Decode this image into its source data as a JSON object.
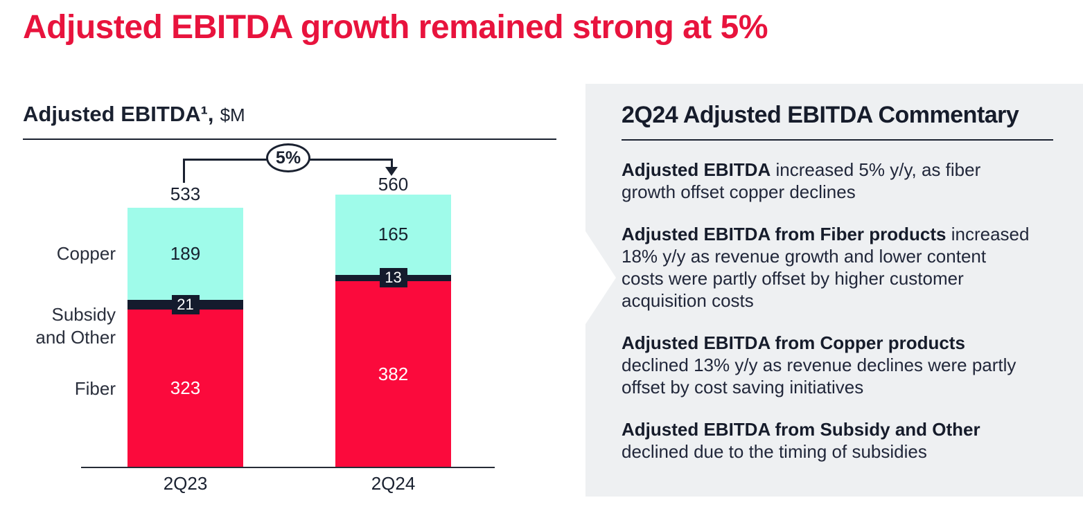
{
  "title": "Adjusted EBITDA growth remained strong at 5%",
  "chart": {
    "header_title": "Adjusted EBITDA¹,",
    "header_unit": "$M"
  },
  "chart_data": {
    "type": "bar",
    "stacked": true,
    "title": "Adjusted EBITDA¹, $M",
    "categories": [
      "2Q23",
      "2Q24"
    ],
    "series": [
      {
        "name": "Fiber",
        "values": [
          323,
          382
        ],
        "color": "#fb0a3c",
        "label_color": "#ffffff",
        "label_style": "inside"
      },
      {
        "name": "Subsidy and Other",
        "values": [
          21,
          13
        ],
        "color": "#141b2d",
        "label_color": "#ffffff",
        "label_style": "box"
      },
      {
        "name": "Copper",
        "values": [
          189,
          165
        ],
        "color": "#9ffbea",
        "label_color": "#16202e",
        "label_style": "inside"
      }
    ],
    "totals": [
      533,
      560
    ],
    "growth_annotation": "5%",
    "ylim": [
      0,
      560
    ],
    "legend_position": "left",
    "grid": false
  },
  "commentary": {
    "heading": "2Q24 Adjusted EBITDA Commentary",
    "paragraphs": [
      {
        "lead": "Adjusted EBITDA",
        "rest": " increased 5% y/y, as fiber growth offset copper declines"
      },
      {
        "lead": "Adjusted EBITDA from Fiber products",
        "rest": " increased 18% y/y as revenue growth and lower content costs were partly offset by higher customer acquisition costs"
      },
      {
        "lead": "Adjusted EBITDA from Copper products",
        "rest": " declined 13% y/y as revenue declines were partly offset by cost saving initiatives"
      },
      {
        "lead": "Adjusted EBITDA from Subsidy and Other",
        "rest": " declined due to the timing of subsidies"
      }
    ]
  },
  "colors": {
    "title_red": "#e8133d",
    "fiber_red": "#fb0a3c",
    "copper_cyan": "#9ffbea",
    "navy": "#141b2d",
    "panel_gray": "#eef0f2",
    "text_dark": "#21273a"
  }
}
